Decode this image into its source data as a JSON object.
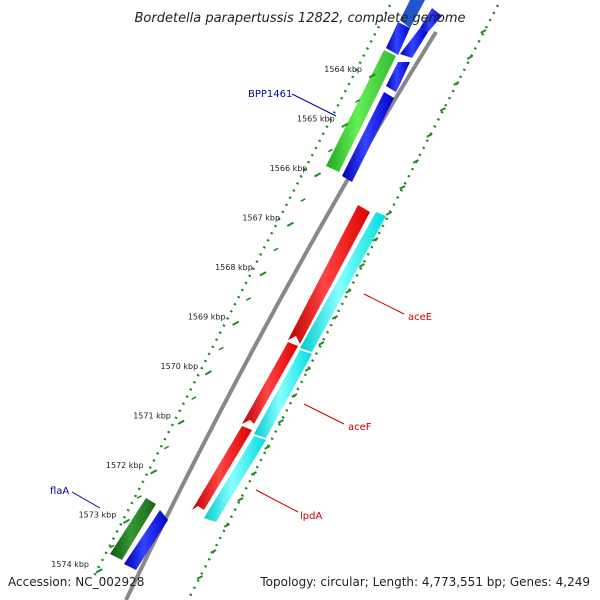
{
  "title": "Bordetella parapertussis 12822, complete genome",
  "footer": {
    "accession": "Accession: NC_002928",
    "topology": "Topology: circular; Length: 4,773,551 bp; Genes: 4,249"
  },
  "ticks": [
    {
      "label": "1564 kbp"
    },
    {
      "label": "1565 kbp"
    },
    {
      "label": "1566 kbp"
    },
    {
      "label": "1567 kbp"
    },
    {
      "label": "1568 kbp"
    },
    {
      "label": "1569 kbp"
    },
    {
      "label": "1570 kbp"
    },
    {
      "label": "1571 kbp"
    },
    {
      "label": "1572 kbp"
    },
    {
      "label": "1573 kbp"
    },
    {
      "label": "1574 kbp"
    }
  ],
  "gene_labels": {
    "bpp1461": "BPP1461",
    "acee": "aceE",
    "acef": "aceF",
    "lpda": "lpdA",
    "flaa": "flaA"
  },
  "colors": {
    "cds_forward": "#0000ee",
    "cds_reverse": "#ff0000",
    "gene_green": "#33cc33",
    "gene_dark_green": "#228822",
    "cyan_feature": "#00ffff",
    "backbone": "#888888",
    "dotted_ring": "#228822",
    "label_blue": "#000099",
    "label_red": "#cc0000"
  }
}
